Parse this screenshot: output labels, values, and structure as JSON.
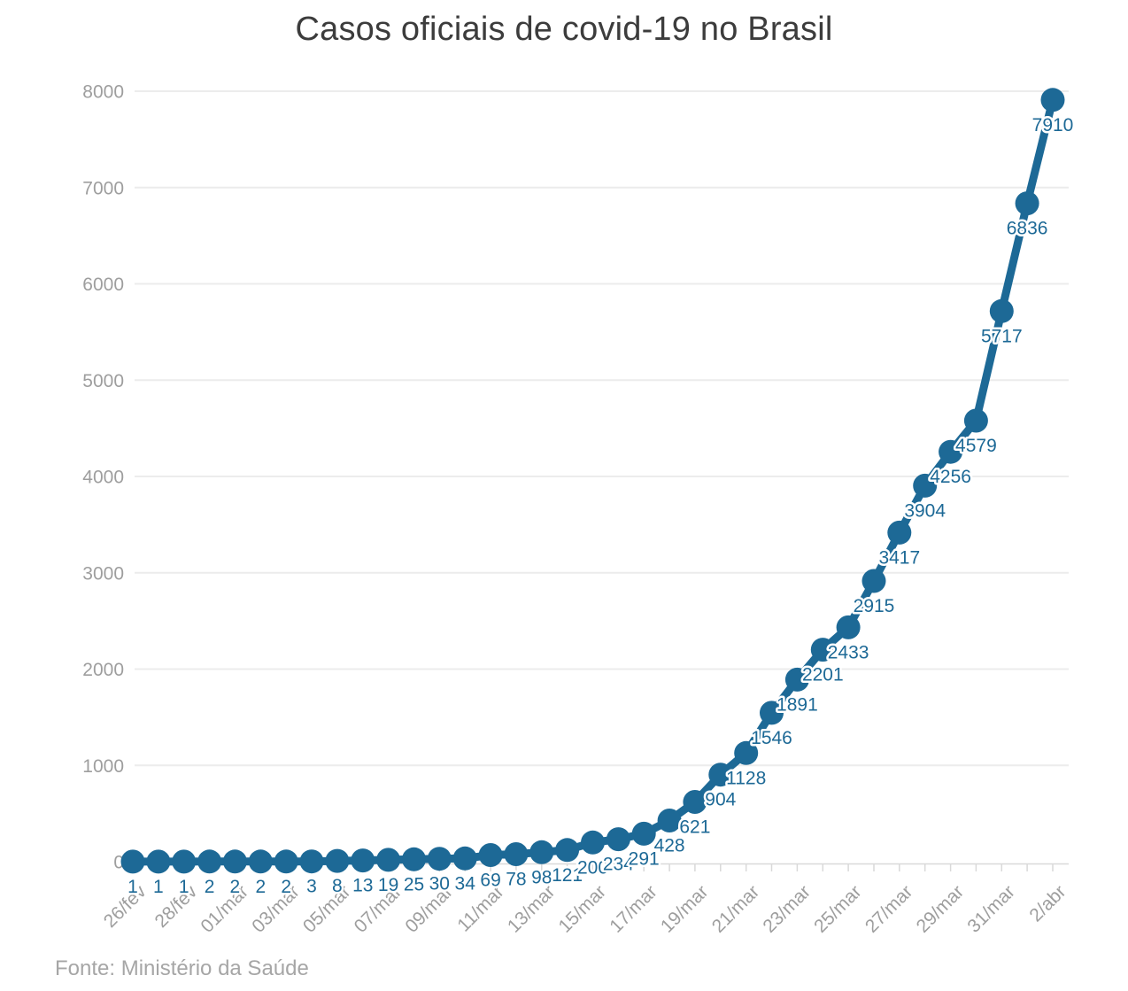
{
  "title": "Casos oficiais de covid-19 no Brasil",
  "source_note": "Fonte: Ministério da Saúde",
  "colors": {
    "series": "#1d6996",
    "point_label": "#1d6996",
    "axis_text": "#9e9e9e",
    "gridline": "#ececec",
    "axis_line": "#d9d9d9",
    "title": "#3c3c3c",
    "source": "#a6a6a6"
  },
  "chart_data": {
    "type": "line",
    "title": "Casos oficiais de covid-19 no Brasil",
    "xlabel": "",
    "ylabel": "",
    "x": [
      "26/fev",
      "27/fev",
      "28/fev",
      "29/fev",
      "01/mar",
      "02/mar",
      "03/mar",
      "04/mar",
      "05/mar",
      "06/mar",
      "07/mar",
      "08/mar",
      "09/mar",
      "10/mar",
      "11/mar",
      "12/mar",
      "13/mar",
      "14/mar",
      "15/mar",
      "16/mar",
      "17/mar",
      "18/mar",
      "19/mar",
      "20/mar",
      "21/mar",
      "22/mar",
      "23/mar",
      "24/mar",
      "25/mar",
      "26/mar",
      "27/mar",
      "28/mar",
      "29/mar",
      "30/mar",
      "31/mar",
      "01/abr",
      "2/abr"
    ],
    "values": [
      1,
      1,
      1,
      2,
      2,
      2,
      2,
      3,
      8,
      13,
      19,
      25,
      30,
      34,
      69,
      78,
      98,
      121,
      200,
      234,
      291,
      428,
      621,
      904,
      1128,
      1546,
      1891,
      2201,
      2433,
      2915,
      3417,
      3904,
      4256,
      4579,
      5717,
      6836,
      7910
    ],
    "point_labels": [
      "1",
      "1",
      "1",
      "2",
      "2",
      "2",
      "2",
      "3",
      "8",
      "13",
      "19",
      "25",
      "30",
      "34",
      "69",
      "78",
      "98",
      "121",
      "200",
      "234",
      "291",
      "428",
      "621",
      "904",
      "1128",
      "1546",
      "1891",
      "2201",
      "2433",
      "2915",
      "3417",
      "3904",
      "4256",
      "4579",
      "5717",
      "6836",
      "7910"
    ],
    "x_tick_labels": [
      "26/fev",
      "28/fev",
      "01/mar",
      "03/mar",
      "05/mar",
      "07/mar",
      "09/mar",
      "11/mar",
      "13/mar",
      "15/mar",
      "17/mar",
      "19/mar",
      "21/mar",
      "23/mar",
      "25/mar",
      "27/mar",
      "29/mar",
      "31/mar",
      "2/abr"
    ],
    "x_tick_every": 2,
    "y_ticks": [
      0,
      1000,
      2000,
      3000,
      4000,
      5000,
      6000,
      7000,
      8000
    ],
    "y_tick_labels": [
      "0",
      "1000",
      "2000",
      "3000",
      "4000",
      "5000",
      "6000",
      "7000",
      "8000"
    ],
    "ylim": [
      0,
      8000
    ],
    "grid": "horizontal",
    "legend": "none",
    "source": "Fonte: Ministério da Saúde"
  }
}
